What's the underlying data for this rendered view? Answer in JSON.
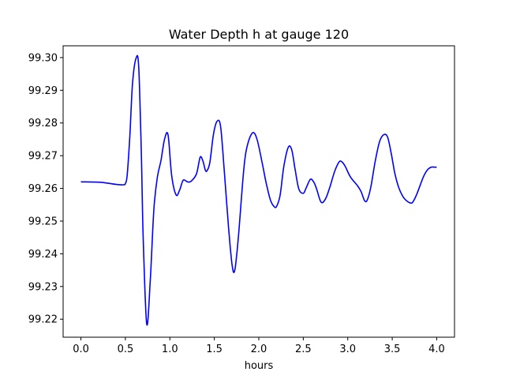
{
  "chart_data": {
    "type": "line",
    "title": "Water Depth h at gauge 120",
    "xlabel": "hours",
    "ylabel": "",
    "xlim": [
      -0.2,
      4.2
    ],
    "ylim": [
      99.2145,
      99.3036
    ],
    "xticks": [
      0.0,
      0.5,
      1.0,
      1.5,
      2.0,
      2.5,
      3.0,
      3.5,
      4.0
    ],
    "xtick_labels": [
      "0.0",
      "0.5",
      "1.0",
      "1.5",
      "2.0",
      "2.5",
      "3.0",
      "3.5",
      "4.0"
    ],
    "yticks": [
      99.22,
      99.23,
      99.24,
      99.25,
      99.26,
      99.27,
      99.28,
      99.29,
      99.3
    ],
    "ytick_labels": [
      "99.22",
      "99.23",
      "99.24",
      "99.25",
      "99.26",
      "99.27",
      "99.28",
      "99.29",
      "99.30"
    ],
    "grid": false,
    "legend": "none",
    "series": [
      {
        "color": "#0000ff",
        "x": [
          0.0,
          0.2,
          0.3,
          0.4,
          0.48,
          0.5,
          0.52,
          0.55,
          0.58,
          0.62,
          0.65,
          0.68,
          0.7,
          0.74,
          0.78,
          0.82,
          0.86,
          0.9,
          0.94,
          0.98,
          1.02,
          1.07,
          1.11,
          1.15,
          1.2,
          1.24,
          1.3,
          1.34,
          1.37,
          1.4,
          1.42,
          1.45,
          1.49,
          1.53,
          1.57,
          1.61,
          1.66,
          1.7,
          1.73,
          1.77,
          1.83,
          1.87,
          1.93,
          1.98,
          2.04,
          2.08,
          2.13,
          2.17,
          2.2,
          2.24,
          2.28,
          2.33,
          2.37,
          2.41,
          2.45,
          2.5,
          2.53,
          2.58,
          2.62,
          2.65,
          2.7,
          2.75,
          2.8,
          2.85,
          2.9,
          2.93,
          2.97,
          3.03,
          3.11,
          3.15,
          3.19,
          3.22,
          3.26,
          3.31,
          3.36,
          3.41,
          3.45,
          3.49,
          3.53,
          3.57,
          3.61,
          3.65,
          3.71,
          3.74,
          3.78,
          3.85,
          3.9,
          3.94,
          3.97,
          4.0
        ],
        "y": [
          99.262,
          99.2619,
          99.2616,
          99.2612,
          99.2611,
          99.2615,
          99.264,
          99.276,
          99.292,
          99.2998,
          99.297,
          99.27,
          99.245,
          99.2185,
          99.232,
          99.2535,
          99.2635,
          99.2685,
          99.275,
          99.2763,
          99.264,
          99.258,
          99.2595,
          99.2625,
          99.262,
          99.2622,
          99.2645,
          99.2695,
          99.2685,
          99.2655,
          99.2655,
          99.268,
          99.2765,
          99.2805,
          99.279,
          99.266,
          99.248,
          99.2365,
          99.235,
          99.245,
          99.2655,
          99.273,
          99.277,
          99.275,
          99.2675,
          99.262,
          99.2565,
          99.2545,
          99.2545,
          99.258,
          99.2665,
          99.2725,
          99.2718,
          99.2655,
          99.2598,
          99.2585,
          99.26,
          99.2628,
          99.2618,
          99.2598,
          99.2558,
          99.2568,
          99.2605,
          99.265,
          99.268,
          99.2682,
          99.2668,
          99.2635,
          99.2608,
          99.259,
          99.2562,
          99.2565,
          99.2605,
          99.2685,
          99.2745,
          99.2765,
          99.2755,
          99.2705,
          99.2645,
          99.2605,
          99.258,
          99.2565,
          99.2555,
          99.2562,
          99.2585,
          99.2635,
          99.2658,
          99.2665,
          99.2665,
          99.2665
        ]
      }
    ]
  }
}
